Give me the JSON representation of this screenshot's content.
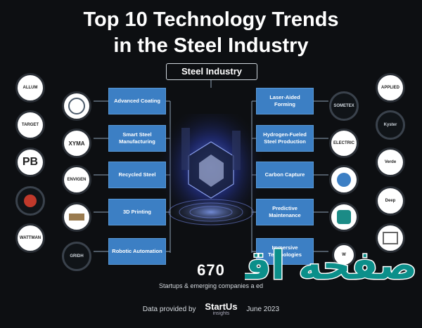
{
  "title_line1": "Top 10 Technology Trends",
  "title_line2": "in the Steel Industry",
  "center_label": "Steel Industry",
  "left_trends": [
    "Advanced Coating",
    "Smart Steel Manufacturing",
    "Recycled Steel",
    "3D Printing",
    "Robotic Automation"
  ],
  "right_trends": [
    "Laser-Aided Forming",
    "Hydrogen-Fueled Steel Production",
    "Carbon Capture",
    "Predictive Maintenance",
    "Immersive Technologies"
  ],
  "left_outer_logos": [
    "ALLUM",
    "TARGET",
    "PB",
    "",
    "WATTMAN"
  ],
  "left_inner_logos": [
    "",
    "XYMA",
    "ENVIGEN",
    "",
    "GRIDH"
  ],
  "right_inner_logos": [
    "SOMETEX",
    "ELECTRIC",
    "",
    "",
    ""
  ],
  "right_outer_logos": [
    "APPLIED",
    "Kyster",
    "Verde",
    "Deep",
    "W"
  ],
  "count": "670",
  "count_caption": "Startups & emerging companies a",
  "count_caption_end": "ed",
  "footer_left": "Data provided by",
  "footer_brand": "StartUs",
  "footer_brand_sub": "insights",
  "footer_right": "June 2023",
  "watermark_text": "صفحه اقتصاد",
  "colors": {
    "accent": "#3c7fc4",
    "background": "#0d0f12",
    "watermark": "#0b8f8a"
  }
}
